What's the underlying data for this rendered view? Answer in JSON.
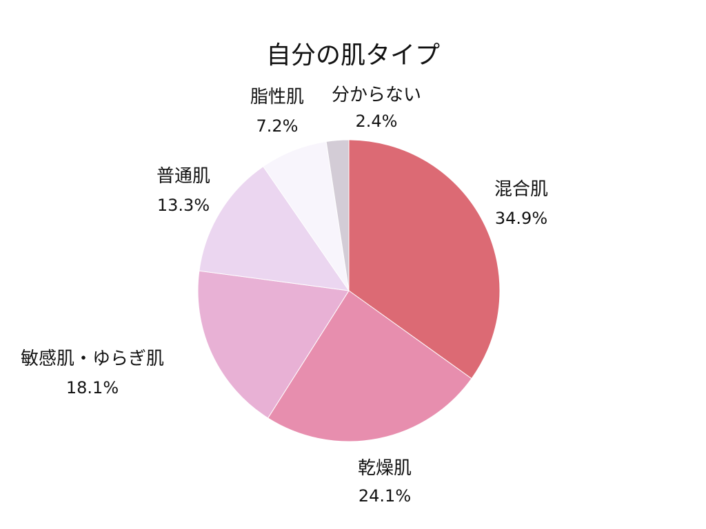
{
  "chart_data": {
    "type": "pie",
    "title": "自分の肌タイプ",
    "start_angle_deg": 0,
    "direction": "clockwise",
    "slices": [
      {
        "label": "混合肌",
        "value": 34.9,
        "value_label": "34.9%",
        "color": "#dc6a74"
      },
      {
        "label": "乾燥肌",
        "value": 24.1,
        "value_label": "24.1%",
        "color": "#e78eae"
      },
      {
        "label": "敏感肌・ゆらぎ肌",
        "value": 18.1,
        "value_label": "18.1%",
        "color": "#e8b1d5"
      },
      {
        "label": "普通肌",
        "value": 13.3,
        "value_label": "13.3%",
        "color": "#ebd6f0"
      },
      {
        "label": "脂性肌",
        "value": 7.2,
        "value_label": "7.2%",
        "color": "#f8f5fc"
      },
      {
        "label": "分からない",
        "value": 2.4,
        "value_label": "2.4%",
        "color": "#d3ccd6"
      }
    ]
  }
}
